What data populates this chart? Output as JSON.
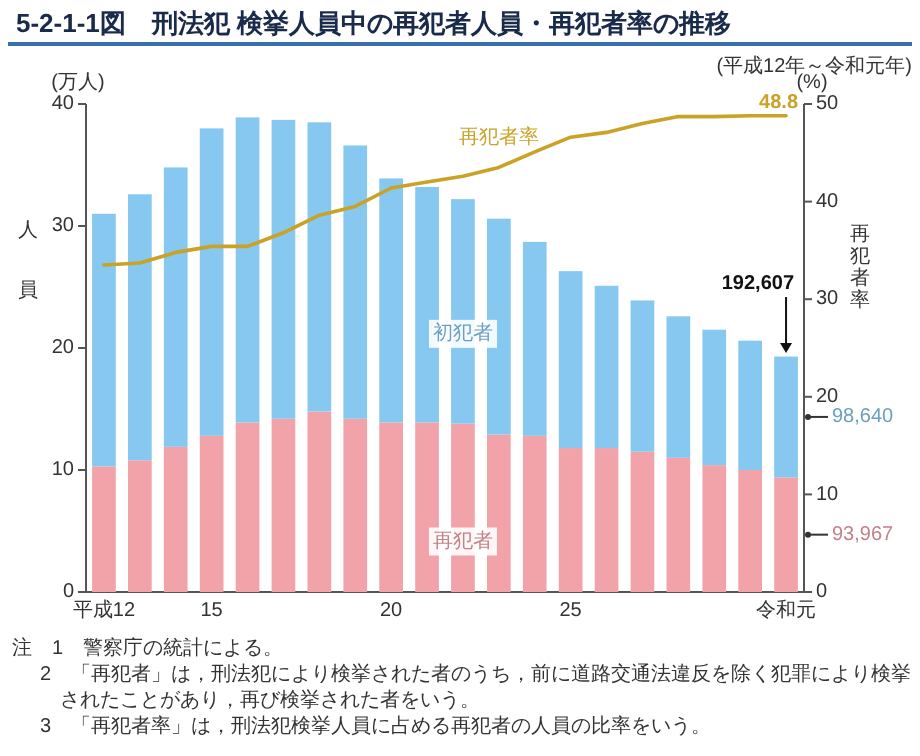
{
  "chart_data": {
    "type": "bar",
    "stacked": true,
    "title": "5-2-1-1図　刑法犯 検挙人員中の再犯者人員・再犯者率の推移",
    "subtitle": "(平成12年～令和元年)",
    "ylabel": "人員",
    "y2label": "再犯者率",
    "categories": [
      "平成12",
      null,
      null,
      "15",
      null,
      null,
      null,
      null,
      "20",
      null,
      null,
      null,
      null,
      "25",
      null,
      null,
      null,
      null,
      null,
      "令和元"
    ],
    "series": [
      {
        "name": "再犯者",
        "color": "#f2a3aa",
        "values": [
          10.3,
          10.8,
          11.9,
          12.8,
          13.9,
          14.2,
          14.8,
          14.2,
          13.9,
          13.9,
          13.8,
          12.9,
          12.8,
          11.8,
          11.8,
          11.5,
          11.0,
          10.4,
          10.0,
          9.4
        ]
      },
      {
        "name": "初犯者",
        "color": "#86c8f0",
        "values": [
          20.7,
          21.8,
          22.9,
          25.2,
          25.0,
          24.5,
          23.7,
          22.4,
          20.0,
          19.3,
          18.4,
          17.7,
          15.9,
          14.5,
          13.3,
          12.4,
          11.6,
          11.1,
          10.6,
          9.9
        ]
      },
      {
        "name": "再犯者率",
        "type": "line",
        "axis": "y2",
        "color": "#c9a227",
        "values": [
          33.5,
          33.7,
          34.8,
          35.4,
          35.4,
          36.8,
          38.6,
          39.5,
          41.4,
          42.0,
          42.6,
          43.5,
          45.1,
          46.6,
          47.1,
          48.0,
          48.7,
          48.7,
          48.8,
          48.8
        ],
        "value_labels": [
          null,
          null,
          null,
          null,
          null,
          null,
          null,
          null,
          null,
          null,
          null,
          null,
          null,
          null,
          null,
          null,
          null,
          null,
          null,
          "48.8"
        ]
      }
    ],
    "ylim": [
      0,
      40
    ],
    "yticks": [
      0,
      10,
      20,
      30,
      40
    ],
    "y2lim": [
      0,
      50
    ],
    "y2ticks": [
      0,
      10,
      20,
      30,
      40,
      50
    ],
    "annotations": [
      "(万人)",
      "(%)",
      {
        "text": "192,607",
        "x": "令和元",
        "y": 19.26
      },
      "93,967",
      "98,640",
      "注　1　警察庁の統計による。",
      "2　「再犯者」は，刑法犯により検挙された者のうち，前に道路交通法違反を除く犯罪により検挙されたことがあり，再び検挙された者をいう。",
      "3　「再犯者率」は，刑法犯検挙人員に占める再犯者の人員の比率をいう。"
    ]
  }
}
